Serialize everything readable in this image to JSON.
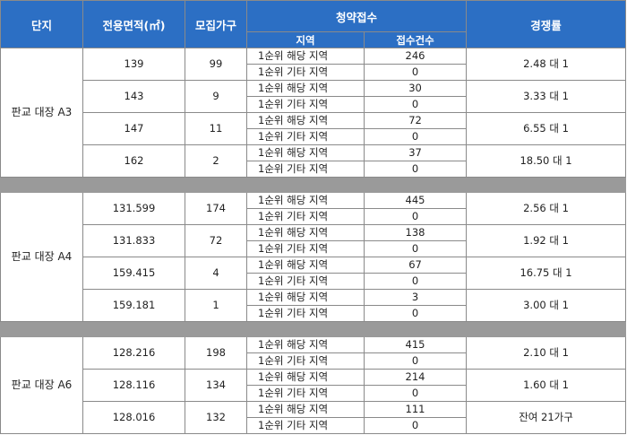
{
  "headers": {
    "complex": "단지",
    "area": "전용면적(㎡)",
    "households": "모집가구",
    "application": "청약접수",
    "region": "지역",
    "count": "접수건수",
    "competition": "경쟁률"
  },
  "blocks": [
    {
      "complex": "판교 대장 A3",
      "units": [
        {
          "area": "139",
          "households": "99",
          "rows": [
            {
              "region": "1순위 해당 지역",
              "count": "246"
            },
            {
              "region": "1순위 기타 지역",
              "count": "0"
            }
          ],
          "rate": "2.48 대 1"
        },
        {
          "area": "143",
          "households": "9",
          "rows": [
            {
              "region": "1순위 해당 지역",
              "count": "30"
            },
            {
              "region": "1순위 기타 지역",
              "count": "0"
            }
          ],
          "rate": "3.33 대 1"
        },
        {
          "area": "147",
          "households": "11",
          "rows": [
            {
              "region": "1순위 해당 지역",
              "count": "72"
            },
            {
              "region": "1순위 기타 지역",
              "count": "0"
            }
          ],
          "rate": "6.55 대 1"
        },
        {
          "area": "162",
          "households": "2",
          "rows": [
            {
              "region": "1순위 해당 지역",
              "count": "37"
            },
            {
              "region": "1순위 기타 지역",
              "count": "0"
            }
          ],
          "rate": "18.50 대 1"
        }
      ]
    },
    {
      "complex": "판교 대장 A4",
      "units": [
        {
          "area": "131.599",
          "households": "174",
          "rows": [
            {
              "region": "1순위 해당 지역",
              "count": "445"
            },
            {
              "region": "1순위 기타 지역",
              "count": "0"
            }
          ],
          "rate": "2.56 대 1"
        },
        {
          "area": "131.833",
          "households": "72",
          "rows": [
            {
              "region": "1순위 해당 지역",
              "count": "138"
            },
            {
              "region": "1순위 기타 지역",
              "count": "0"
            }
          ],
          "rate": "1.92 대 1"
        },
        {
          "area": "159.415",
          "households": "4",
          "rows": [
            {
              "region": "1순위 해당 지역",
              "count": "67"
            },
            {
              "region": "1순위 기타 지역",
              "count": "0"
            }
          ],
          "rate": "16.75 대 1"
        },
        {
          "area": "159.181",
          "households": "1",
          "rows": [
            {
              "region": "1순위 해당 지역",
              "count": "3"
            },
            {
              "region": "1순위 기타 지역",
              "count": "0"
            }
          ],
          "rate": "3.00 대 1"
        }
      ]
    },
    {
      "complex": "판교 대장 A6",
      "units": [
        {
          "area": "128.216",
          "households": "198",
          "rows": [
            {
              "region": "1순위 해당 지역",
              "count": "415"
            },
            {
              "region": "1순위 기타 지역",
              "count": "0"
            }
          ],
          "rate": "2.10 대 1"
        },
        {
          "area": "128.116",
          "households": "134",
          "rows": [
            {
              "region": "1순위 해당 지역",
              "count": "214"
            },
            {
              "region": "1순위 기타 지역",
              "count": "0"
            }
          ],
          "rate": "1.60 대 1"
        },
        {
          "area": "128.016",
          "households": "132",
          "rows": [
            {
              "region": "1순위 해당 지역",
              "count": "111"
            },
            {
              "region": "1순위 기타 지역",
              "count": "0"
            }
          ],
          "rate": "잔여 21가구"
        }
      ]
    }
  ]
}
